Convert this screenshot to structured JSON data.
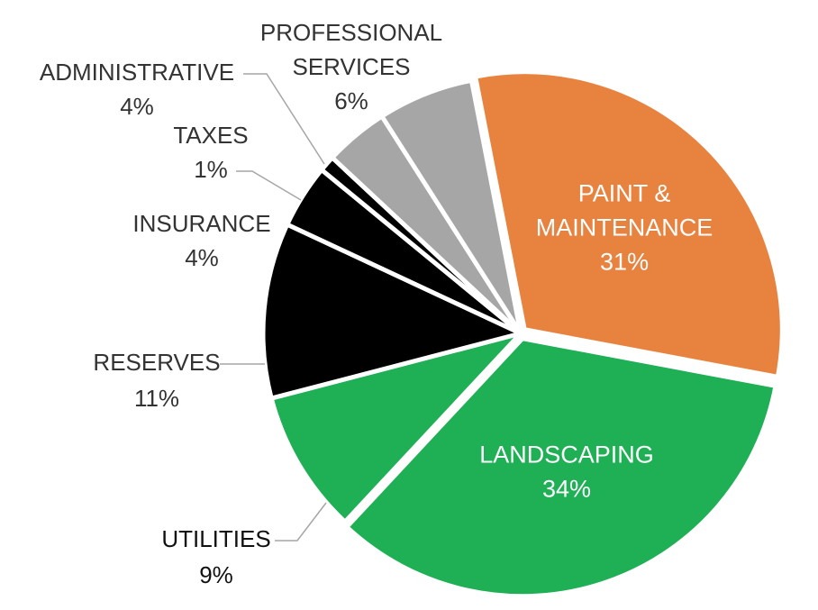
{
  "chart_data": {
    "type": "pie",
    "title": "",
    "slices": [
      {
        "label_lines": [
          "PAINT &",
          "MAINTENANCE"
        ],
        "pct_text": "31%",
        "value": 31,
        "color": "#E8823F",
        "text_color": "#FFFFFF",
        "label_inside": true
      },
      {
        "label_lines": [
          "LANDSCAPING"
        ],
        "pct_text": "34%",
        "value": 34,
        "color": "#1FAF55",
        "text_color": "#FFFFFF",
        "label_inside": true
      },
      {
        "label_lines": [
          "UTILITIES"
        ],
        "pct_text": "9%",
        "value": 9,
        "color": "#1FAF55",
        "text_color": "#111111",
        "label_inside": false
      },
      {
        "label_lines": [
          "RESERVES"
        ],
        "pct_text": "11%",
        "value": 11,
        "color": "#000000",
        "text_color": "#333333",
        "label_inside": false
      },
      {
        "label_lines": [
          "INSURANCE"
        ],
        "pct_text": "4%",
        "value": 4,
        "color": "#000000",
        "text_color": "#333333",
        "label_inside": false
      },
      {
        "label_lines": [
          "TAXES"
        ],
        "pct_text": "1%",
        "value": 1,
        "color": "#000000",
        "text_color": "#333333",
        "label_inside": false
      },
      {
        "label_lines": [
          "ADMINISTRATIVE"
        ],
        "pct_text": "4%",
        "value": 4,
        "color": "#A6A6A6",
        "text_color": "#333333",
        "label_inside": false
      },
      {
        "label_lines": [
          "PROFESSIONAL",
          "SERVICES"
        ],
        "pct_text": "6%",
        "value": 6,
        "color": "#A6A6A6",
        "text_color": "#333333",
        "label_inside": false
      }
    ],
    "separator_color": "#FFFFFF",
    "leader_line_color": "#A6A6A6"
  }
}
